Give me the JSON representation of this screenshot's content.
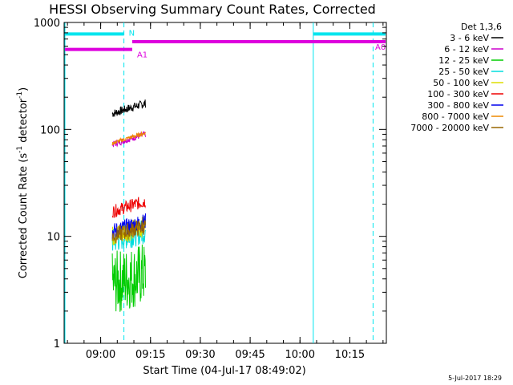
{
  "chart_data": {
    "type": "line",
    "title": "HESSI Observing Summary Count Rates, Corrected",
    "xlabel": "Start Time (04-Jul-17 08:49:02)",
    "ylabel_main": "Corrected Count Rate (s",
    "ylabel_sup1": "-1",
    "ylabel_mid": " detector",
    "ylabel_sup2": "-1",
    "ylabel_end": ")",
    "y_scale": "log",
    "ylim": [
      1,
      1000
    ],
    "xlim_minutes_after_0900": [
      -11,
      86
    ],
    "x_ticks": [
      {
        "label": "09:00",
        "m": 0
      },
      {
        "label": "09:15",
        "m": 15
      },
      {
        "label": "09:30",
        "m": 30
      },
      {
        "label": "09:45",
        "m": 45
      },
      {
        "label": "10:00",
        "m": 60
      },
      {
        "label": "10:15",
        "m": 75
      }
    ],
    "y_ticks": [
      {
        "label": "1",
        "v": 1
      },
      {
        "label": "10",
        "v": 10
      },
      {
        "label": "100",
        "v": 100
      },
      {
        "label": "1000",
        "v": 1000
      }
    ],
    "legend_title": "Det 1,3,6",
    "legend_placement": "right",
    "series": [
      {
        "name": "3 - 6 keV",
        "color": "#000000",
        "level": 140,
        "start": 3.5,
        "end": 13.5,
        "noise": 0.04
      },
      {
        "name": "6 - 12 keV",
        "color": "#cc00cc",
        "level": 72,
        "start": 3.5,
        "end": 13.5,
        "noise": 0.03
      },
      {
        "name": "12 - 25 keV",
        "color": "#00cc00",
        "level": 3.6,
        "start": 3.5,
        "end": 13.5,
        "noise": 0.3
      },
      {
        "name": "25 - 50 keV",
        "color": "#00dddd",
        "level": 9,
        "start": 3.5,
        "end": 13.5,
        "noise": 0.12
      },
      {
        "name": "50 - 100 keV",
        "color": "#dddd00",
        "level": 10,
        "start": 3.5,
        "end": 13.5,
        "noise": 0.1
      },
      {
        "name": "100 - 300 keV",
        "color": "#ee0000",
        "level": 17,
        "start": 3.5,
        "end": 13.5,
        "noise": 0.06
      },
      {
        "name": "300 - 800 keV",
        "color": "#0000ee",
        "level": 11,
        "start": 3.5,
        "end": 13.5,
        "noise": 0.08
      },
      {
        "name": "800 - 7000 keV",
        "color": "#ee8800",
        "level": 74,
        "start": 3.5,
        "end": 13.5,
        "noise": 0.02
      },
      {
        "name": "7000 - 20000 keV",
        "color": "#996600",
        "level": 10,
        "start": 3.5,
        "end": 13.5,
        "noise": 0.08
      }
    ],
    "flag_bars": [
      {
        "label": "N",
        "color": "#00e5ee",
        "y": 780,
        "segments": [
          [
            -11,
            7
          ],
          [
            64,
            86
          ]
        ]
      },
      {
        "label": "A0",
        "color": "#dd00dd",
        "y": 660,
        "segments": [
          [
            9.5,
            86
          ]
        ]
      },
      {
        "label": "A1",
        "color": "#dd00dd",
        "y": 560,
        "segments": [
          [
            -11,
            9.5
          ]
        ]
      }
    ],
    "vlines_solid": [
      {
        "m": -11,
        "color": "#00e5ee"
      },
      {
        "m": 64,
        "color": "#00e5ee"
      }
    ],
    "vlines_dashed": [
      {
        "m": 7,
        "color": "#00e5ee"
      },
      {
        "m": 82,
        "color": "#00e5ee"
      }
    ],
    "footer_date": "5-Jul-2017 18:29"
  }
}
